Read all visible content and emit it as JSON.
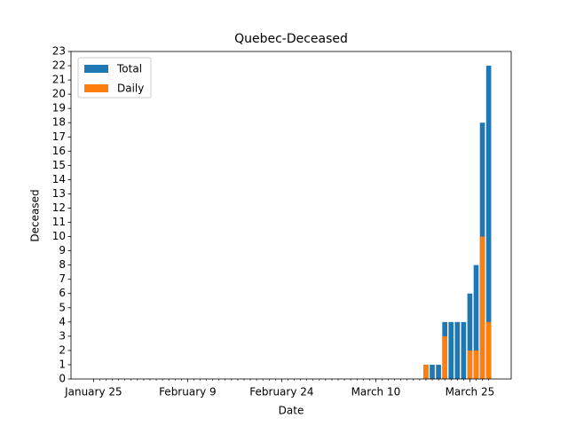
{
  "chart_data": {
    "type": "bar",
    "title": "Quebec-Deceased",
    "x_label": "Date",
    "y_label": "Deceased",
    "categories": [
      "January 25",
      null,
      null,
      null,
      null,
      null,
      null,
      null,
      null,
      null,
      null,
      null,
      null,
      null,
      null,
      "February 9",
      null,
      null,
      null,
      null,
      null,
      null,
      null,
      null,
      null,
      null,
      null,
      null,
      null,
      null,
      "February 24",
      null,
      null,
      null,
      null,
      null,
      null,
      null,
      null,
      null,
      null,
      null,
      null,
      null,
      null,
      "March 10",
      null,
      null,
      null,
      null,
      null,
      null,
      null,
      null,
      null,
      null,
      null,
      null,
      null,
      null,
      "March 25",
      null,
      null,
      null
    ],
    "series": [
      {
        "name": "Total",
        "color": "#1f77b4",
        "values": [
          0,
          0,
          0,
          0,
          0,
          0,
          0,
          0,
          0,
          0,
          0,
          0,
          0,
          0,
          0,
          0,
          0,
          0,
          0,
          0,
          0,
          0,
          0,
          0,
          0,
          0,
          0,
          0,
          0,
          0,
          0,
          0,
          0,
          0,
          0,
          0,
          0,
          0,
          0,
          0,
          0,
          0,
          0,
          0,
          0,
          0,
          0,
          0,
          0,
          0,
          0,
          0,
          0,
          1,
          1,
          1,
          4,
          4,
          4,
          4,
          6,
          8,
          18,
          22
        ]
      },
      {
        "name": "Daily",
        "color": "#ff7f0e",
        "values": [
          0,
          0,
          0,
          0,
          0,
          0,
          0,
          0,
          0,
          0,
          0,
          0,
          0,
          0,
          0,
          0,
          0,
          0,
          0,
          0,
          0,
          0,
          0,
          0,
          0,
          0,
          0,
          0,
          0,
          0,
          0,
          0,
          0,
          0,
          0,
          0,
          0,
          0,
          0,
          0,
          0,
          0,
          0,
          0,
          0,
          0,
          0,
          0,
          0,
          0,
          0,
          0,
          0,
          1,
          0,
          0,
          3,
          0,
          0,
          0,
          2,
          2,
          10,
          4
        ]
      }
    ],
    "ylim": [
      0,
      23
    ],
    "yticks": [
      0,
      1,
      2,
      3,
      4,
      5,
      6,
      7,
      8,
      9,
      10,
      11,
      12,
      13,
      14,
      15,
      16,
      17,
      18,
      19,
      20,
      21,
      22,
      23
    ],
    "grid": false,
    "legend": "upper left"
  }
}
